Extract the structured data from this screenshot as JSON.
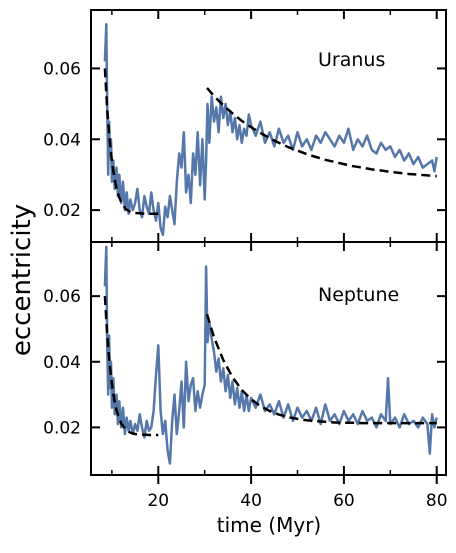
{
  "chart_data": {
    "type": "line",
    "xlabel": "time (Myr)",
    "ylabel": "eccentricity",
    "xlim": [
      5.5,
      82.0
    ],
    "xticks": [
      20,
      40,
      60,
      80
    ],
    "xminor_ticks": [
      10,
      30,
      50,
      70
    ],
    "colors": {
      "simulation": "#5577aa",
      "fit": "#000000"
    },
    "panels": [
      {
        "label": "Uranus",
        "ylim": [
          0.011,
          0.0765
        ],
        "yticks": [
          0.02,
          0.04,
          0.06
        ],
        "ytick_labels": [
          "0.02",
          "0.04",
          "0.06"
        ],
        "series": [
          {
            "style": "solid",
            "x": [
              8.5,
              8.8,
              9.0,
              9.2,
              9.4,
              9.6,
              9.8,
              10.0,
              10.3,
              10.6,
              11.0,
              11.3,
              11.6,
              12.0,
              12.4,
              12.8,
              13.2,
              13.6,
              14.0,
              14.5,
              15.0,
              15.5,
              16.0,
              16.5,
              17.0,
              17.5,
              18.0,
              18.5,
              19.0,
              19.5,
              20.0,
              20.5,
              21.0,
              21.5,
              22.0,
              22.5,
              23.0,
              23.5,
              24.0,
              24.5,
              25.0,
              25.5,
              26.0,
              26.5,
              27.0,
              27.5,
              28.0,
              28.5,
              29.0,
              29.5,
              30.0,
              30.3,
              30.6,
              31.0,
              31.5,
              32.0,
              32.5,
              33.0,
              33.5,
              34.0,
              34.5,
              35.0,
              35.5,
              36.0,
              36.5,
              37.0,
              37.5,
              38.0,
              38.5,
              39.0,
              39.5,
              40.0,
              41.0,
              42.0,
              43.0,
              44.0,
              45.0,
              46.0,
              47.0,
              48.0,
              49.0,
              50.0,
              51.0,
              52.0,
              53.0,
              54.0,
              55.0,
              56.0,
              57.0,
              58.0,
              59.0,
              60.0,
              61.0,
              62.0,
              63.0,
              64.0,
              65.0,
              66.0,
              67.0,
              68.0,
              69.0,
              70.0,
              71.0,
              72.0,
              73.0,
              74.0,
              75.0,
              76.0,
              77.0,
              78.0,
              79.0,
              79.5,
              80.0
            ],
            "y": [
              0.062,
              0.0725,
              0.05,
              0.03,
              0.045,
              0.035,
              0.04,
              0.028,
              0.034,
              0.026,
              0.032,
              0.024,
              0.03,
              0.022,
              0.028,
              0.02,
              0.025,
              0.019,
              0.023,
              0.02,
              0.022,
              0.026,
              0.02,
              0.018,
              0.024,
              0.021,
              0.019,
              0.025,
              0.02,
              0.017,
              0.022,
              0.015,
              0.013,
              0.021,
              0.018,
              0.024,
              0.02,
              0.016,
              0.028,
              0.036,
              0.032,
              0.042,
              0.025,
              0.03,
              0.022,
              0.036,
              0.03,
              0.042,
              0.027,
              0.04,
              0.023,
              0.034,
              0.05,
              0.039,
              0.052,
              0.045,
              0.049,
              0.042,
              0.052,
              0.046,
              0.05,
              0.044,
              0.048,
              0.042,
              0.046,
              0.04,
              0.044,
              0.039,
              0.043,
              0.041,
              0.047,
              0.044,
              0.041,
              0.045,
              0.039,
              0.042,
              0.038,
              0.043,
              0.039,
              0.041,
              0.037,
              0.042,
              0.038,
              0.04,
              0.037,
              0.041,
              0.039,
              0.042,
              0.04,
              0.038,
              0.041,
              0.039,
              0.043,
              0.037,
              0.04,
              0.038,
              0.041,
              0.037,
              0.036,
              0.039,
              0.037,
              0.038,
              0.035,
              0.037,
              0.034,
              0.036,
              0.033,
              0.035,
              0.032,
              0.033,
              0.034,
              0.031,
              0.035
            ]
          },
          {
            "style": "dashed",
            "x": [
              8.5,
              9,
              9.5,
              10,
              10.5,
              11,
              11.5,
              12,
              13,
              14,
              15,
              16,
              17,
              18,
              19,
              20,
              30.5,
              32,
              34,
              36,
              38,
              40,
              42,
              44,
              46,
              48,
              50,
              52,
              54,
              56,
              58,
              60,
              62,
              64,
              66,
              68,
              70,
              72,
              74,
              76,
              78,
              80
            ],
            "y": [
              0.06,
              0.0485,
              0.04,
              0.0338,
              0.0294,
              0.0262,
              0.0239,
              0.0223,
              0.0203,
              0.0195,
              0.0192,
              0.0191,
              0.019,
              0.019,
              0.019,
              0.019,
              0.0545,
              0.0522,
              0.0496,
              0.0473,
              0.0452,
              0.0434,
              0.0418,
              0.0403,
              0.039,
              0.0378,
              0.0368,
              0.0358,
              0.035,
              0.0342,
              0.0336,
              0.033,
              0.0324,
              0.032,
              0.0315,
              0.0312,
              0.0308,
              0.0305,
              0.0302,
              0.03,
              0.0298,
              0.0296
            ]
          }
        ]
      },
      {
        "label": "Neptune",
        "ylim": [
          0.0055,
          0.0765
        ],
        "yticks": [
          0.02,
          0.04,
          0.06
        ],
        "ytick_labels": [
          "0.02",
          "0.04",
          "0.06"
        ],
        "series": [
          {
            "style": "solid",
            "x": [
              8.5,
              8.8,
              9.0,
              9.2,
              9.4,
              9.6,
              9.8,
              10.0,
              10.3,
              10.6,
              11.0,
              11.3,
              11.6,
              12.0,
              12.4,
              12.8,
              13.2,
              13.6,
              14.0,
              14.5,
              15.0,
              15.5,
              16.0,
              16.5,
              17.0,
              17.5,
              18.0,
              18.5,
              19.0,
              19.5,
              20.0,
              20.5,
              21.0,
              21.5,
              22.0,
              22.5,
              23.0,
              23.5,
              24.0,
              24.5,
              25.0,
              25.5,
              26.0,
              26.5,
              27.0,
              27.5,
              28.0,
              28.5,
              29.0,
              29.5,
              30.0,
              30.3,
              30.6,
              31.0,
              31.5,
              32.0,
              32.5,
              33.0,
              33.5,
              34.0,
              34.5,
              35.0,
              35.5,
              36.0,
              36.5,
              37.0,
              37.5,
              38.0,
              38.5,
              39.0,
              39.5,
              40.0,
              41.0,
              42.0,
              43.0,
              44.0,
              45.0,
              46.0,
              47.0,
              48.0,
              49.0,
              50.0,
              51.0,
              52.0,
              53.0,
              54.0,
              55.0,
              56.0,
              57.0,
              58.0,
              59.0,
              60.0,
              61.0,
              62.0,
              63.0,
              64.0,
              65.0,
              66.0,
              67.0,
              68.0,
              69.0,
              69.5,
              70.0,
              71.0,
              72.0,
              73.0,
              74.0,
              75.0,
              76.0,
              77.0,
              78.0,
              78.5,
              79.0,
              79.5,
              80.0
            ],
            "y": [
              0.063,
              0.075,
              0.045,
              0.03,
              0.048,
              0.032,
              0.04,
              0.026,
              0.035,
              0.024,
              0.03,
              0.021,
              0.028,
              0.02,
              0.026,
              0.018,
              0.023,
              0.019,
              0.022,
              0.018,
              0.021,
              0.019,
              0.024,
              0.02,
              0.017,
              0.022,
              0.019,
              0.02,
              0.025,
              0.036,
              0.045,
              0.025,
              0.018,
              0.022,
              0.013,
              0.009,
              0.022,
              0.03,
              0.018,
              0.025,
              0.034,
              0.02,
              0.04,
              0.028,
              0.033,
              0.035,
              0.025,
              0.031,
              0.026,
              0.03,
              0.033,
              0.069,
              0.046,
              0.052,
              0.047,
              0.043,
              0.037,
              0.041,
              0.034,
              0.038,
              0.031,
              0.036,
              0.029,
              0.034,
              0.027,
              0.032,
              0.026,
              0.031,
              0.025,
              0.03,
              0.025,
              0.029,
              0.026,
              0.03,
              0.025,
              0.027,
              0.024,
              0.028,
              0.023,
              0.027,
              0.022,
              0.026,
              0.023,
              0.025,
              0.022,
              0.026,
              0.021,
              0.027,
              0.022,
              0.024,
              0.021,
              0.025,
              0.022,
              0.024,
              0.021,
              0.025,
              0.022,
              0.023,
              0.02,
              0.024,
              0.022,
              0.035,
              0.021,
              0.023,
              0.02,
              0.024,
              0.021,
              0.022,
              0.02,
              0.023,
              0.021,
              0.012,
              0.024,
              0.02,
              0.023
            ]
          },
          {
            "style": "dashed",
            "x": [
              8.5,
              9,
              9.5,
              10,
              10.5,
              11,
              11.5,
              12,
              13,
              14,
              15,
              16,
              17,
              18,
              19,
              20,
              30.5,
              32,
              34,
              36,
              38,
              40,
              42,
              44,
              46,
              48,
              50,
              52,
              54,
              56,
              58,
              60,
              62,
              64,
              66,
              68,
              70,
              72,
              74,
              76,
              78,
              80
            ],
            "y": [
              0.06,
              0.0482,
              0.0395,
              0.0332,
              0.0286,
              0.0253,
              0.0229,
              0.0212,
              0.0193,
              0.0184,
              0.018,
              0.0178,
              0.0178,
              0.0177,
              0.0177,
              0.0177,
              0.0545,
              0.0475,
              0.0405,
              0.0353,
              0.0314,
              0.0286,
              0.0265,
              0.025,
              0.0239,
              0.0231,
              0.0226,
              0.0222,
              0.0219,
              0.0217,
              0.0215,
              0.0214,
              0.0214,
              0.0213,
              0.0213,
              0.0213,
              0.0213,
              0.0213,
              0.0213,
              0.0213,
              0.0213,
              0.0213
            ]
          }
        ]
      }
    ]
  }
}
